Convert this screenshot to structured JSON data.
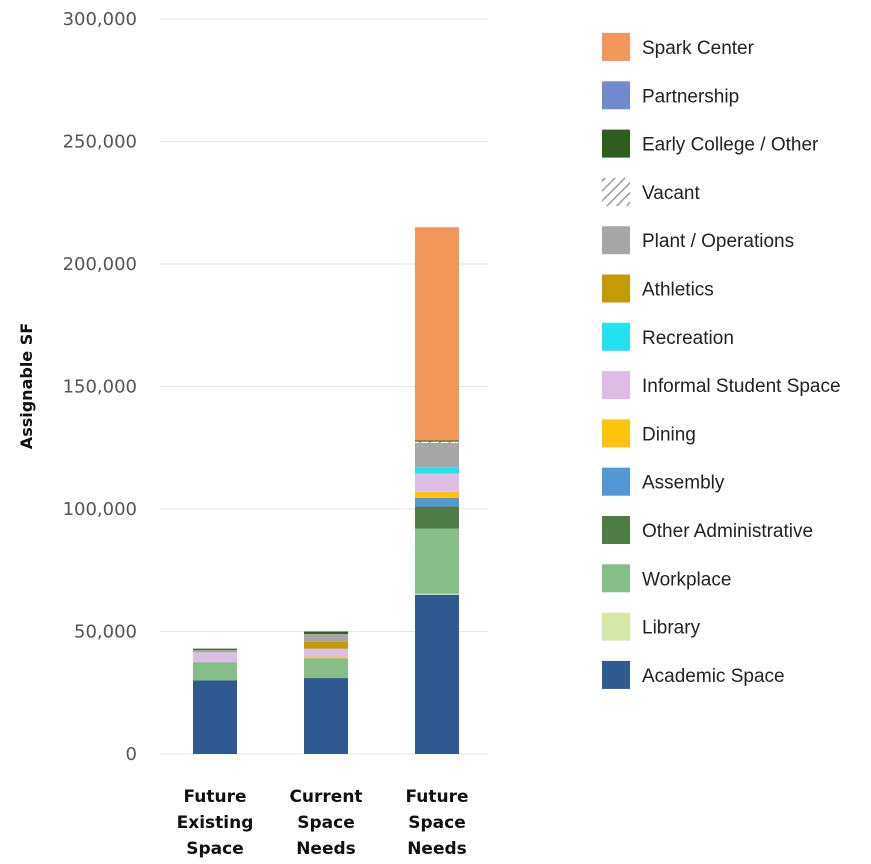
{
  "chart_data": {
    "type": "bar",
    "stacked": true,
    "ylabel": "Assignable SF",
    "ylim": [
      0,
      300000
    ],
    "yticks": [
      0,
      50000,
      100000,
      150000,
      200000,
      250000,
      300000
    ],
    "ytick_labels": [
      "0",
      "50,000",
      "100,000",
      "150,000",
      "200,000",
      "250,000",
      "300,000"
    ],
    "grid": true,
    "legend_position": "right",
    "categories": [
      [
        "Future",
        "Existing",
        "Space"
      ],
      [
        "Current",
        "Space",
        "Needs"
      ],
      [
        "Future",
        "Space",
        "Needs"
      ]
    ],
    "series": [
      {
        "name": "Academic Space",
        "color": "#2E5A91",
        "values": [
          30000,
          31000,
          65000
        ]
      },
      {
        "name": "Library",
        "color": "#D6E8A8",
        "values": [
          0,
          0,
          500
        ]
      },
      {
        "name": "Workplace",
        "color": "#86BE87",
        "values": [
          7500,
          8000,
          26500
        ]
      },
      {
        "name": "Other Administrative",
        "color": "#4F7C44",
        "values": [
          0,
          0,
          9000
        ]
      },
      {
        "name": "Assembly",
        "color": "#5099D6",
        "values": [
          0,
          0,
          3500
        ]
      },
      {
        "name": "Dining",
        "color": "#FFC20E",
        "values": [
          0,
          500,
          2500
        ]
      },
      {
        "name": "Informal Student Space",
        "color": "#DDBDE6",
        "values": [
          4000,
          3500,
          7500
        ]
      },
      {
        "name": "Recreation",
        "color": "#22E2F2",
        "values": [
          0,
          0,
          2500
        ]
      },
      {
        "name": "Athletics",
        "color": "#C49A05",
        "values": [
          0,
          3000,
          0
        ]
      },
      {
        "name": "Plant / Operations",
        "color": "#A6A6A6",
        "values": [
          1000,
          3000,
          10000
        ]
      },
      {
        "name": "Vacant",
        "color": "#9A9A9A",
        "pattern": "hatch",
        "values": [
          0,
          0,
          500
        ]
      },
      {
        "name": "Early College / Other",
        "color": "#2E5E1E",
        "values": [
          500,
          1000,
          500
        ]
      },
      {
        "name": "Partnership",
        "color": "#7189CF",
        "values": [
          0,
          0,
          0
        ]
      },
      {
        "name": "Spark Center",
        "color": "#F2965A",
        "values": [
          0,
          0,
          87000
        ]
      }
    ],
    "legend_order": [
      "Spark Center",
      "Partnership",
      "Early College / Other",
      "Vacant",
      "Plant / Operations",
      "Athletics",
      "Recreation",
      "Informal Student Space",
      "Dining",
      "Assembly",
      "Other Administrative",
      "Workplace",
      "Library",
      "Academic Space"
    ]
  }
}
